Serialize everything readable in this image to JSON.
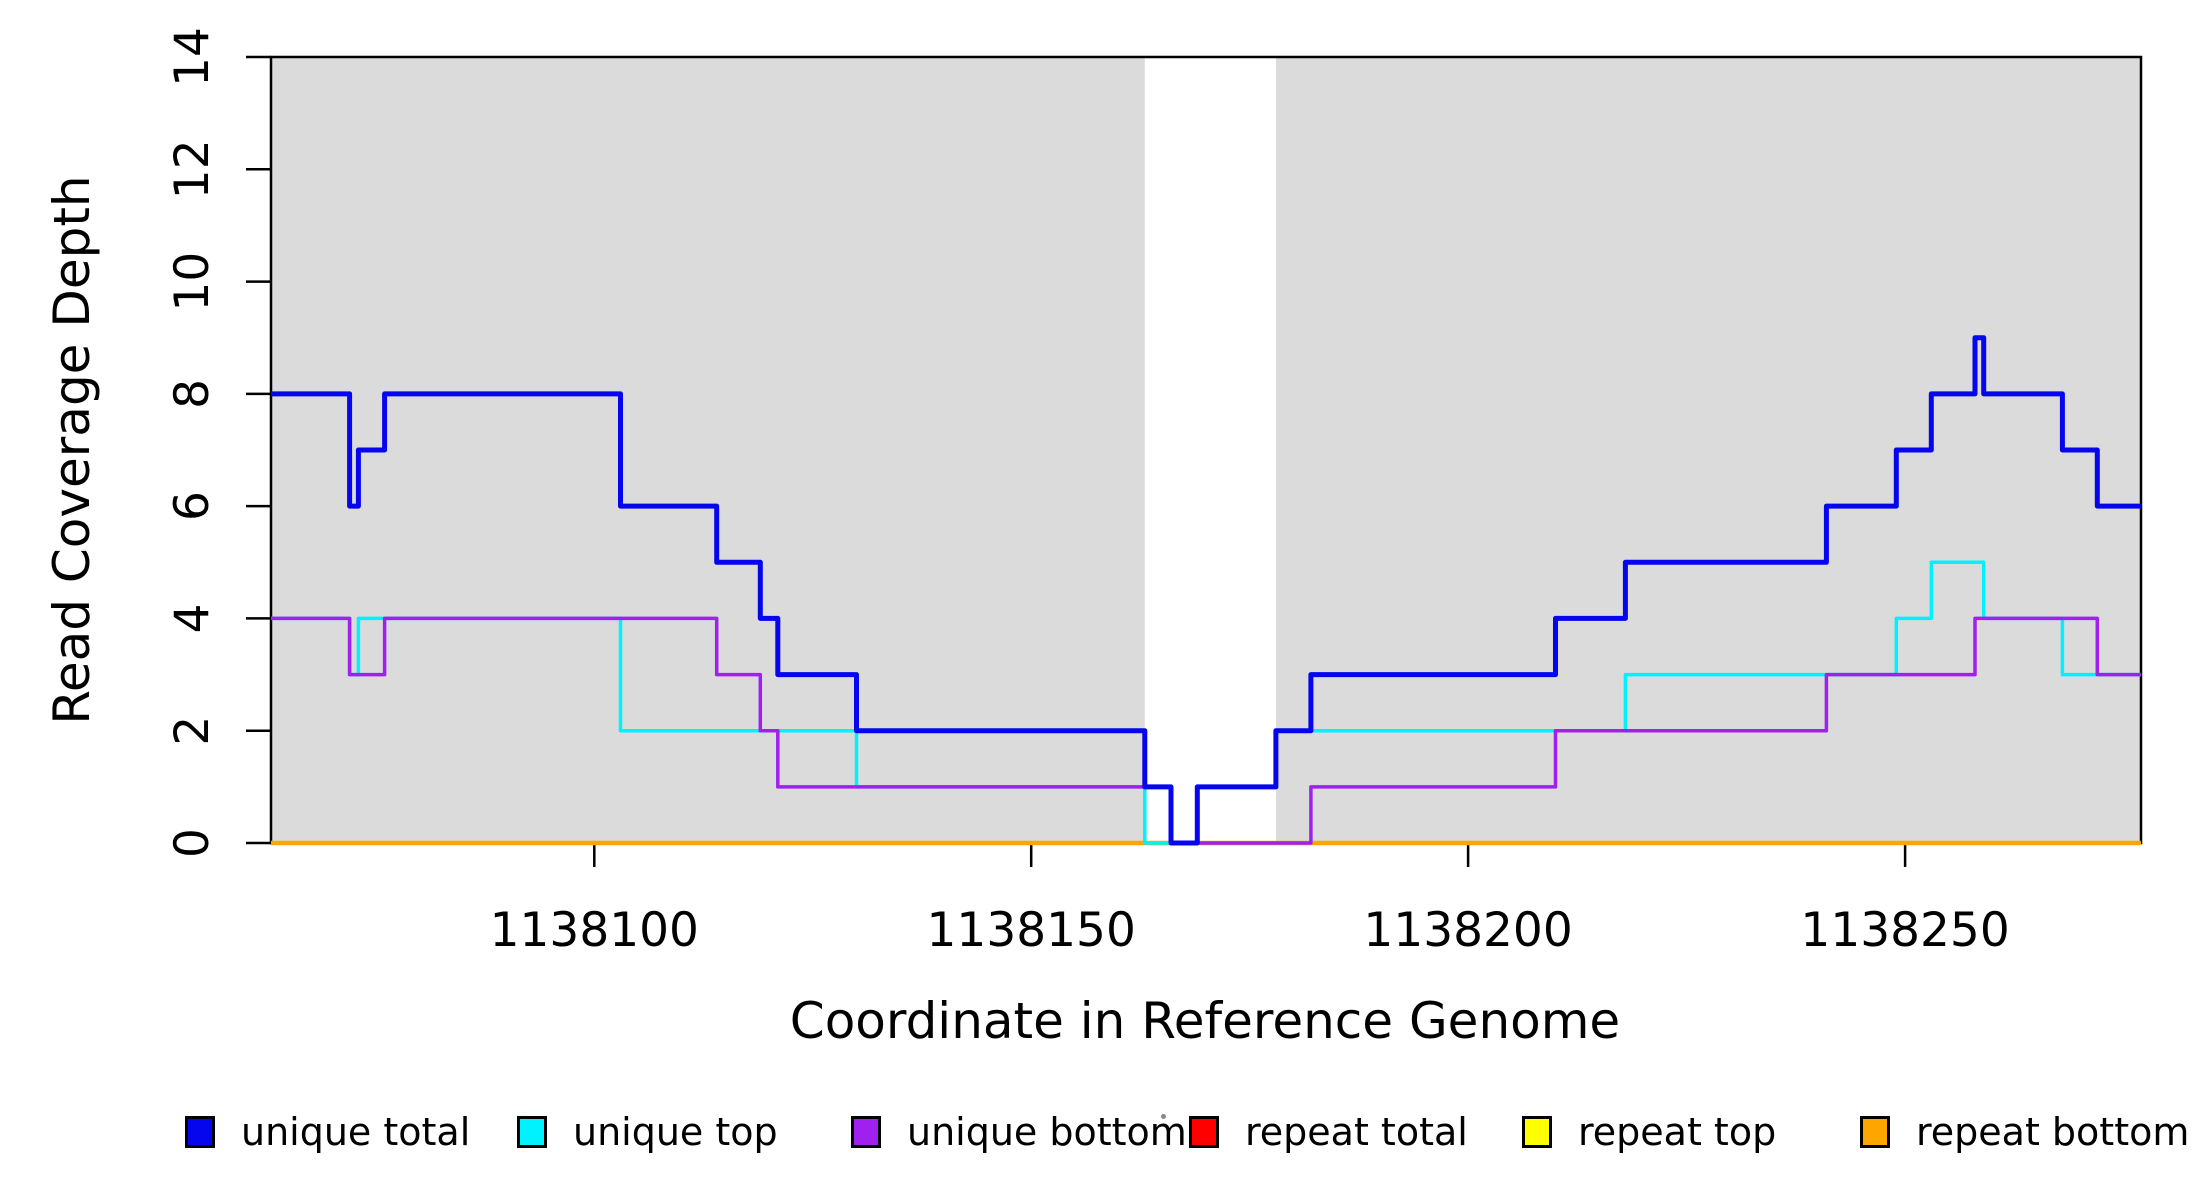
{
  "chart_data": {
    "type": "line",
    "subtype": "step-post",
    "title": "",
    "xlabel": "Coordinate in Reference Genome",
    "ylabel": "Read Coverage Depth",
    "xlim": [
      1138063,
      1138277
    ],
    "ylim": [
      0,
      14
    ],
    "x_ticks": [
      1138100,
      1138150,
      1138200,
      1138250
    ],
    "y_ticks": [
      0,
      2,
      4,
      6,
      8,
      10,
      12,
      14
    ],
    "grid": "off",
    "axis_color": "#000000",
    "background": {
      "band_color": "#DBDBDB",
      "shaded_x_ranges": [
        [
          1138063,
          1138163
        ],
        [
          1138178,
          1138277
        ]
      ],
      "gap_x_range": [
        1138163,
        1138178
      ]
    },
    "draw_order": [
      "repeat total",
      "repeat top",
      "repeat bottom",
      "unique top",
      "unique bottom",
      "unique total"
    ],
    "series": [
      {
        "name": "unique total",
        "color": "#0505EE",
        "stroke_width": 5,
        "points": [
          [
            1138063,
            8
          ],
          [
            1138072,
            6
          ],
          [
            1138073,
            7
          ],
          [
            1138076,
            8
          ],
          [
            1138103,
            6
          ],
          [
            1138114,
            5
          ],
          [
            1138119,
            4
          ],
          [
            1138121,
            3
          ],
          [
            1138130,
            2
          ],
          [
            1138163,
            1
          ],
          [
            1138166,
            0
          ],
          [
            1138169,
            1
          ],
          [
            1138178,
            2
          ],
          [
            1138182,
            3
          ],
          [
            1138210,
            4
          ],
          [
            1138218,
            5
          ],
          [
            1138241,
            6
          ],
          [
            1138249,
            7
          ],
          [
            1138253,
            8
          ],
          [
            1138258,
            9
          ],
          [
            1138259,
            8
          ],
          [
            1138268,
            7
          ],
          [
            1138272,
            6
          ],
          [
            1138277,
            6
          ]
        ]
      },
      {
        "name": "unique top",
        "color": "#00F2FF",
        "stroke_width": 3.5,
        "points": [
          [
            1138063,
            4
          ],
          [
            1138072,
            3
          ],
          [
            1138073,
            4
          ],
          [
            1138103,
            2
          ],
          [
            1138130,
            1
          ],
          [
            1138163,
            0
          ],
          [
            1138169,
            1
          ],
          [
            1138178,
            2
          ],
          [
            1138218,
            3
          ],
          [
            1138249,
            4
          ],
          [
            1138253,
            5
          ],
          [
            1138259,
            4
          ],
          [
            1138268,
            3
          ],
          [
            1138277,
            3
          ]
        ]
      },
      {
        "name": "unique bottom",
        "color": "#A020F0",
        "stroke_width": 3.5,
        "points": [
          [
            1138063,
            4
          ],
          [
            1138072,
            3
          ],
          [
            1138076,
            4
          ],
          [
            1138114,
            3
          ],
          [
            1138119,
            2
          ],
          [
            1138121,
            1
          ],
          [
            1138166,
            0
          ],
          [
            1138182,
            1
          ],
          [
            1138210,
            2
          ],
          [
            1138241,
            3
          ],
          [
            1138258,
            4
          ],
          [
            1138272,
            3
          ],
          [
            1138277,
            3
          ]
        ]
      },
      {
        "name": "repeat total",
        "color": "#FF0000",
        "stroke_width": 3,
        "points": [
          [
            1138063,
            0
          ],
          [
            1138277,
            0
          ]
        ]
      },
      {
        "name": "repeat top",
        "color": "#FFFF00",
        "stroke_width": 3,
        "points": [
          [
            1138063,
            0
          ],
          [
            1138277,
            0
          ]
        ]
      },
      {
        "name": "repeat bottom",
        "color": "#FFA500",
        "stroke_width": 4.5,
        "points": [
          [
            1138063,
            0
          ],
          [
            1138277,
            0
          ]
        ]
      }
    ],
    "legend": {
      "position": "bottom",
      "items": [
        {
          "label": "unique total",
          "color": "#0505EE"
        },
        {
          "label": "unique top",
          "color": "#00F2FF"
        },
        {
          "label": "unique bottom",
          "color": "#A020F0"
        },
        {
          "label": "repeat total",
          "color": "#FF0000"
        },
        {
          "label": "repeat top",
          "color": "#FFFF00"
        },
        {
          "label": "repeat bottom",
          "color": "#FFA500"
        }
      ]
    }
  }
}
